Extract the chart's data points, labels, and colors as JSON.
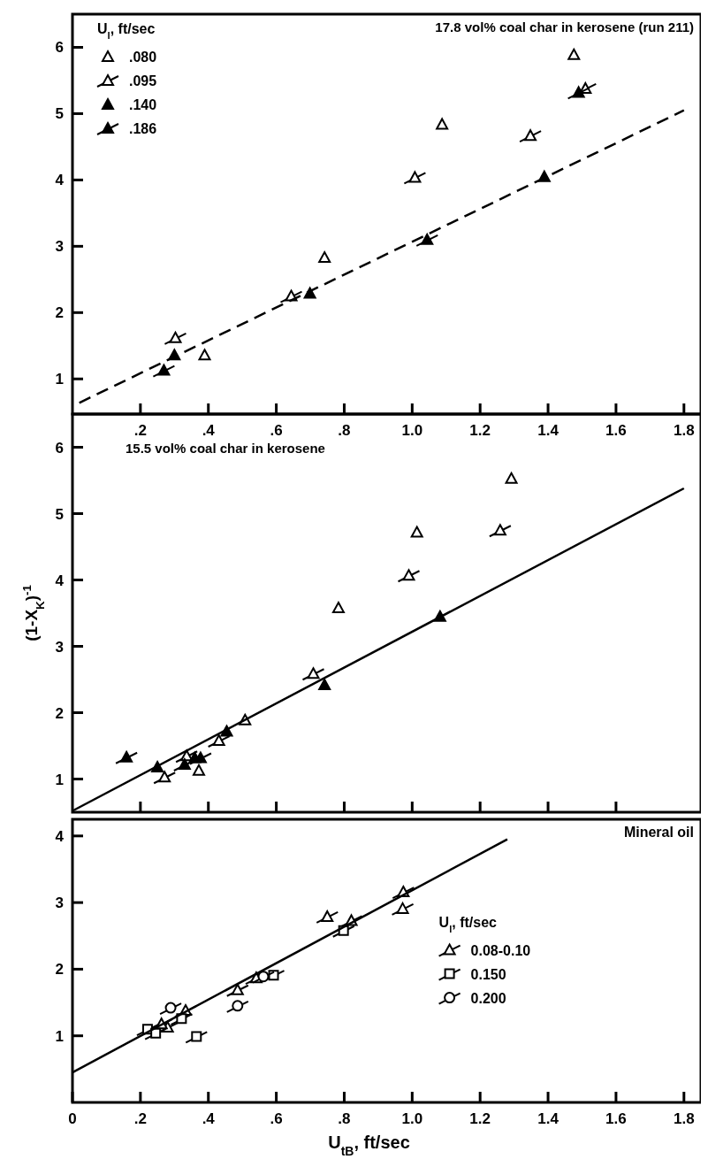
{
  "chart_data": [
    {
      "type": "scatter",
      "title": "17.8 vol% coal char in kerosene (run 211)",
      "legend_title": "U$_{l}$, ft/sec",
      "legend": "top left",
      "grid": false,
      "xlim": [
        0,
        1.85
      ],
      "xticks": [
        {
          "value": 0.2,
          "label": ".2"
        },
        {
          "value": 0.4,
          "label": ".4"
        },
        {
          "value": 0.6,
          "label": ".6"
        },
        {
          "value": 0.8,
          "label": ".8"
        },
        {
          "value": 1,
          "label": "1.0"
        },
        1.2,
        1.4,
        1.6,
        1.8
      ],
      "ylim": [
        0.47,
        6.5
      ],
      "yticks": [
        1,
        2,
        3,
        4,
        5,
        6
      ],
      "series": [
        {
          "name": ".080",
          "color": "#000000",
          "marker": "triangle",
          "x": [
            1.476,
            1.088,
            0.742,
            0.389
          ],
          "values": [
            5.89,
            4.84,
            2.83,
            1.36
          ]
        },
        {
          "name": ".095",
          "color": "#000000",
          "marker": "triangle",
          "x": [
            1.51,
            1.348,
            1.008,
            0.644,
            0.303
          ],
          "values": [
            5.38,
            4.67,
            4.04,
            2.25,
            1.62
          ]
        },
        {
          "name": ".140",
          "color": "#000000",
          "marker": "triangle",
          "x": [
            1.389,
            0.699,
            0.3
          ],
          "values": [
            4.05,
            2.29,
            1.36
          ]
        },
        {
          "name": ".186",
          "color": "#000000",
          "marker": "triangle",
          "x": [
            1.49,
            1.044,
            0.269
          ],
          "values": [
            5.32,
            3.1,
            1.13
          ]
        },
        {
          "type": "line",
          "color": "#000000",
          "line_style": "dashed",
          "x": [
            0.02,
            1.8
          ],
          "values": [
            0.64,
            5.05
          ]
        }
      ]
    },
    {
      "type": "scatter",
      "title": "15.5 vol% coal char in kerosene",
      "ylabel": "(1-X$_{K}$)$^{-1}$",
      "grid": false,
      "tick_labels": "y",
      "xlim": [
        0,
        1.85
      ],
      "xticks": [
        {
          "value": 0.2,
          "label": null
        },
        {
          "value": 0.4,
          "label": null
        },
        {
          "value": 0.6,
          "label": null
        },
        {
          "value": 0.8,
          "label": null
        },
        {
          "value": 1,
          "label": null
        },
        {
          "value": 1.2,
          "label": null
        },
        {
          "value": 1.4,
          "label": null
        },
        {
          "value": 1.6,
          "label": null
        }
      ],
      "ylim": [
        0.5,
        6.5
      ],
      "yticks": [
        1,
        2,
        3,
        4,
        5,
        6
      ],
      "series": [
        {
          "color": "#000000",
          "marker": "triangle",
          "x": [
            1.292,
            1.014,
            0.783,
            0.508,
            0.372
          ],
          "values": [
            5.53,
            4.72,
            3.58,
            1.89,
            1.13
          ]
        },
        {
          "color": "#000000",
          "marker": "triangle",
          "x": [
            1.259,
            0.99,
            0.709,
            0.431,
            0.336,
            0.271
          ],
          "values": [
            4.75,
            4.07,
            2.59,
            1.58,
            1.35,
            1.03
          ]
        },
        {
          "color": "#000000",
          "marker": "triangle",
          "x": [
            1.082,
            0.742,
            0.454,
            0.36,
            0.25
          ],
          "values": [
            3.45,
            2.42,
            1.72,
            1.32,
            1.18
          ]
        },
        {
          "color": "#000000",
          "marker": "triangle",
          "x": [
            0.159,
            0.33,
            0.377
          ],
          "values": [
            1.33,
            1.22,
            1.32
          ]
        },
        {
          "type": "line",
          "color": "#000000",
          "line_style": "solid",
          "x": [
            0,
            1.8
          ],
          "values": [
            0.52,
            5.38
          ]
        }
      ]
    },
    {
      "type": "scatter",
      "title": "Mineral oil",
      "xlabel": "U$_{tB}$, ft/sec",
      "legend_title": "U$_{l}$, ft/sec",
      "legend": "right",
      "grid": false,
      "xlim": [
        0,
        1.85
      ],
      "xticks": [
        0,
        {
          "value": 0.2,
          "label": ".2"
        },
        {
          "value": 0.4,
          "label": ".4"
        },
        {
          "value": 0.6,
          "label": ".6"
        },
        {
          "value": 0.8,
          "label": ".8"
        },
        {
          "value": 1,
          "label": "1.0"
        },
        1.2,
        1.4,
        1.6,
        1.8
      ],
      "ylim": [
        0,
        4.25
      ],
      "yticks": [
        1,
        2,
        3,
        4
      ],
      "series": [
        {
          "name": "0.08-0.10",
          "color": "#000000",
          "marker": "triangle",
          "x": [
            0.974,
            0.972,
            0.75,
            0.821,
            0.541,
            0.486,
            0.333,
            0.28,
            0.262
          ],
          "values": [
            3.16,
            2.91,
            2.79,
            2.73,
            1.87,
            1.69,
            1.38,
            1.13,
            1.18
          ]
        },
        {
          "name": "0.150",
          "color": "#000000",
          "marker": "square",
          "x": [
            0.798,
            0.592,
            0.321,
            0.221,
            0.245,
            0.365
          ],
          "values": [
            2.58,
            1.91,
            1.26,
            1.1,
            1.04,
            0.99
          ]
        },
        {
          "name": "0.200",
          "color": "#000000",
          "marker": "circle",
          "x": [
            0.562,
            0.486,
            0.289
          ],
          "values": [
            1.89,
            1.45,
            1.42
          ]
        },
        {
          "type": "line",
          "color": "#000000",
          "line_style": "solid",
          "x": [
            0,
            1.28
          ],
          "values": [
            0.45,
            3.95
          ]
        }
      ]
    }
  ]
}
